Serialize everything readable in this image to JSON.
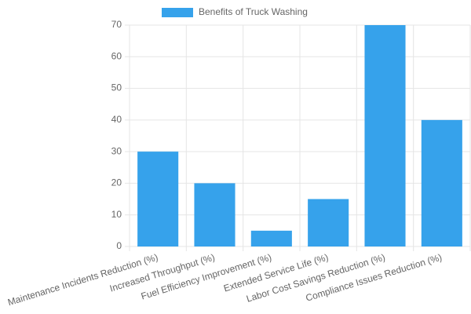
{
  "chart_data": {
    "type": "bar",
    "categories": [
      "Maintenance Incidents Reduction (%)",
      "Increased Throughput (%)",
      "Fuel Efficiency Improvement (%)",
      "Extended Service Life (%)",
      "Labor Cost Savings Reduction (%)",
      "Compliance Issues Reduction (%)"
    ],
    "series": [
      {
        "name": "Benefits of Truck Washing",
        "color": "#36a2eb",
        "values": [
          30,
          20,
          5,
          15,
          70,
          40
        ]
      }
    ],
    "ylim": [
      0,
      70
    ],
    "yticks": [
      0,
      10,
      20,
      30,
      40,
      50,
      60,
      70
    ],
    "grid": true,
    "legend": "top"
  }
}
